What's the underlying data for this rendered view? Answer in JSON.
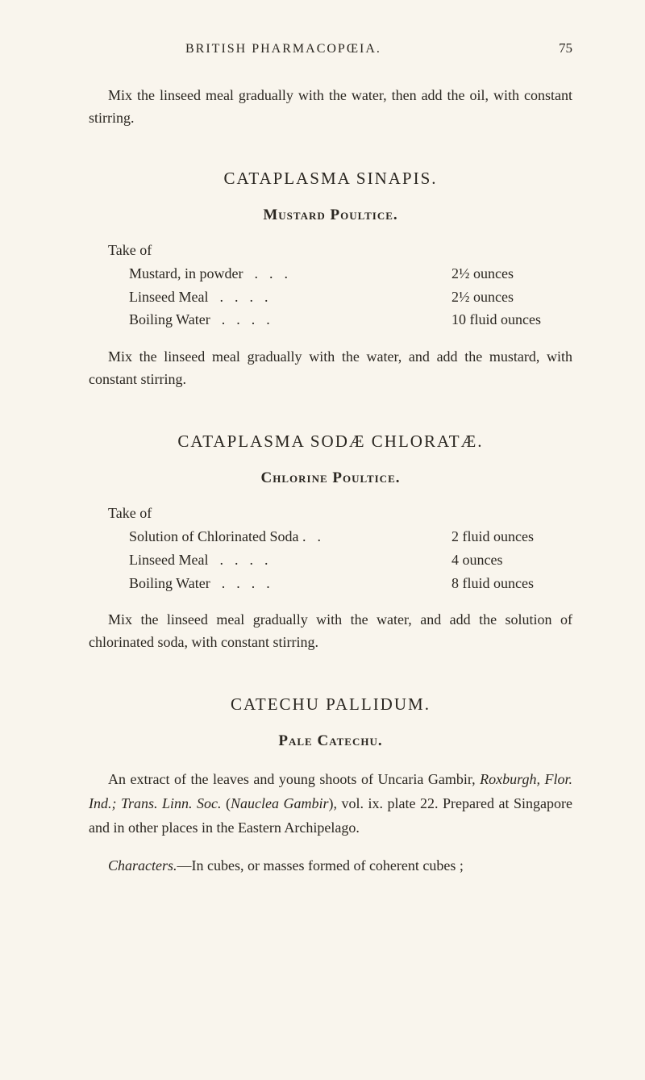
{
  "header": {
    "running_title": "BRITISH PHARMACOPŒIA.",
    "page_number": "75"
  },
  "intro_paragraph": "Mix the linseed meal gradually with the water, then add the oil, with constant stirring.",
  "sections": [
    {
      "title": "CATAPLASMA SINAPIS.",
      "subtitle": "Mustard Poultice.",
      "take_of": "Take of",
      "ingredients": [
        {
          "name": "Mustard, in powder",
          "dots": "...",
          "amount": "2½ ounces"
        },
        {
          "name": "Linseed Meal",
          "dots": "....",
          "amount": "2½ ounces"
        },
        {
          "name": "Boiling Water",
          "dots": "....",
          "amount": "10 fluid ounces"
        }
      ],
      "instruction": "Mix the linseed meal gradually with the water, and add the mustard, with constant stirring."
    },
    {
      "title": "CATAPLASMA SODÆ CHLORATÆ.",
      "subtitle": "Chlorine Poultice.",
      "take_of": "Take of",
      "ingredients": [
        {
          "name": "Solution of Chlorinated Soda .",
          "dots": ".",
          "amount": "2 fluid ounces"
        },
        {
          "name": "Linseed Meal",
          "dots": "....",
          "amount": "4 ounces"
        },
        {
          "name": "Boiling Water",
          "dots": "....",
          "amount": "8 fluid ounces"
        }
      ],
      "instruction": "Mix the linseed meal gradually with the water, and add the solution of chlorinated soda, with constant stirring."
    }
  ],
  "catechu": {
    "title": "CATECHU PALLIDUM.",
    "subtitle": "Pale Catechu.",
    "body_pre": "An extract of the leaves and young shoots of Uncaria Gambir, ",
    "body_ital1": "Roxburgh, Flor. Ind.; Trans. Linn. Soc.",
    "body_mid1": " (",
    "body_ital2": "Nauclea Gambir",
    "body_mid2": "), vol. ix. plate 22.   Prepared at Singapore and in other places in the Eastern Archipelago.",
    "characters_label": "Characters.",
    "characters_text": "—In cubes, or masses formed of coherent cubes ;"
  },
  "style": {
    "background_color": "#f9f5ed",
    "text_color": "#2a2620",
    "body_fontsize": 18,
    "title_fontsize": 21,
    "subtitle_fontsize": 19
  }
}
